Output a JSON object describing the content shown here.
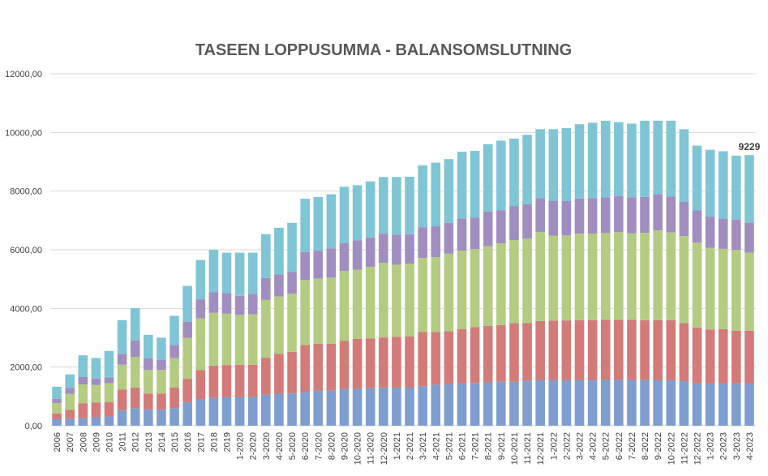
{
  "chart_data": {
    "type": "bar",
    "stacked": true,
    "title": "TASEEN LOPPUSUMMA - BALANSOMSLUTNING",
    "xlabel": "",
    "ylabel": "",
    "ylim": [
      0,
      12000
    ],
    "yticks": [
      "0,00",
      "2000,00",
      "4000,00",
      "6000,00",
      "8000,00",
      "10000,00",
      "12000,00"
    ],
    "ytick_values": [
      0,
      2000,
      4000,
      6000,
      8000,
      10000,
      12000
    ],
    "grid": true,
    "legend": "none",
    "categories": [
      "2006",
      "2007",
      "2008",
      "2009",
      "2010",
      "2011",
      "2012",
      "2013",
      "2014",
      "2015",
      "2016",
      "2017",
      "2018",
      "2019",
      "1-2020",
      "2-2020",
      "3-2020",
      "4-2020",
      "5-2020",
      "6-2020",
      "7-2020",
      "8-2020",
      "9-2020",
      "10-2020",
      "11-2020",
      "12-2020",
      "1-2021",
      "2-2021",
      "3-2021",
      "4-2021",
      "5-2021",
      "6-2021",
      "7-2021",
      "8-2021",
      "9-2021",
      "10-2021",
      "11-2021",
      "12-2021",
      "1-2022",
      "2-2022",
      "3-2022",
      "4-2022",
      "5-2022",
      "6-2022",
      "7-2022",
      "8-2022",
      "9-2022",
      "10-2022",
      "11-2022",
      "12-2022",
      "1-2023",
      "2-2023",
      "3-2023",
      "4-2023"
    ],
    "series": [
      {
        "color": "#7f9ecf",
        "values": [
          220,
          240,
          260,
          290,
          320,
          530,
          600,
          550,
          550,
          600,
          800,
          900,
          950,
          970,
          980,
          980,
          1060,
          1090,
          1100,
          1150,
          1200,
          1200,
          1250,
          1260,
          1280,
          1290,
          1300,
          1300,
          1350,
          1400,
          1420,
          1440,
          1460,
          1480,
          1500,
          1500,
          1530,
          1550,
          1550,
          1550,
          1550,
          1550,
          1560,
          1560,
          1560,
          1560,
          1550,
          1550,
          1520,
          1450,
          1440,
          1440,
          1440,
          1440
        ]
      },
      {
        "color": "#d27b79",
        "values": [
          200,
          300,
          500,
          500,
          480,
          700,
          700,
          550,
          550,
          700,
          800,
          1000,
          1100,
          1100,
          1100,
          1100,
          1260,
          1360,
          1420,
          1600,
          1600,
          1600,
          1650,
          1700,
          1700,
          1720,
          1730,
          1740,
          1850,
          1800,
          1800,
          1850,
          1900,
          1920,
          1930,
          2000,
          1970,
          2020,
          2030,
          2040,
          2050,
          2050,
          2050,
          2050,
          2050,
          2040,
          2050,
          2050,
          1980,
          1900,
          1840,
          1850,
          1800,
          1800
        ]
      },
      {
        "color": "#b3cc82",
        "values": [
          350,
          550,
          650,
          600,
          650,
          850,
          1050,
          800,
          800,
          1000,
          1400,
          1760,
          1800,
          1750,
          1700,
          1720,
          1970,
          1960,
          1980,
          2220,
          2220,
          2250,
          2380,
          2360,
          2440,
          2540,
          2460,
          2490,
          2520,
          2550,
          2650,
          2680,
          2660,
          2720,
          2790,
          2830,
          2880,
          3040,
          2900,
          2900,
          2950,
          2950,
          2960,
          2990,
          2950,
          2980,
          3060,
          2990,
          2970,
          2890,
          2790,
          2740,
          2760,
          2660
        ]
      },
      {
        "color": "#a08ec0",
        "values": [
          150,
          200,
          250,
          220,
          200,
          370,
          560,
          400,
          350,
          450,
          550,
          650,
          700,
          700,
          650,
          700,
          750,
          750,
          750,
          950,
          950,
          1000,
          950,
          1000,
          1000,
          1000,
          1020,
          1000,
          1050,
          1050,
          1050,
          1100,
          1080,
          1180,
          1130,
          1160,
          1170,
          1150,
          1190,
          1170,
          1200,
          1210,
          1220,
          1230,
          1230,
          1220,
          1240,
          1230,
          1160,
          1100,
          1050,
          1020,
          1030,
          1030
        ]
      },
      {
        "color": "#7fc5d6",
        "values": [
          410,
          460,
          740,
          700,
          900,
          1150,
          1100,
          800,
          750,
          1000,
          1220,
          1340,
          1450,
          1380,
          1470,
          1400,
          1490,
          1590,
          1670,
          1820,
          1830,
          1840,
          1920,
          1880,
          1910,
          1930,
          1970,
          1960,
          2110,
          2170,
          2170,
          2270,
          2270,
          2300,
          2370,
          2300,
          2370,
          2350,
          2440,
          2490,
          2530,
          2570,
          2610,
          2520,
          2510,
          2600,
          2500,
          2580,
          2480,
          2210,
          2290,
          2310,
          2180,
          2299
        ]
      }
    ],
    "data_labels": [
      {
        "index": 53,
        "text": "9229"
      }
    ]
  }
}
